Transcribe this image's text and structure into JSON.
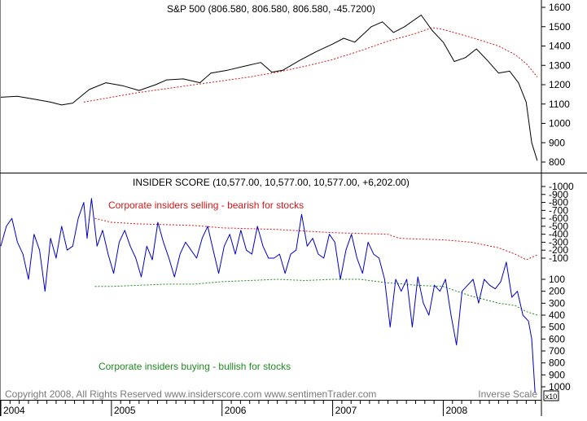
{
  "colors": {
    "background": "#ffffff",
    "axis": "#000000",
    "price_line": "#000000",
    "price_ma": "#d21919",
    "score_line": "#0000c8",
    "selling_band": "#d21919",
    "buying_band": "#1e8c1e"
  },
  "footer": {
    "copyright": "Copyright 2008, All Rights Reserved   www.insiderscore.com   www.sentimenTrader.com",
    "inverse_scale": "Inverse Scale",
    "multiplier": "x10"
  },
  "chart_data": [
    {
      "type": "line",
      "title": "S&P 500 (806.580, 806.580, 806.580, -45.7200)",
      "ylim": [
        760,
        1630
      ],
      "y_ticks": [
        800,
        900,
        1000,
        1100,
        1200,
        1300,
        1400,
        1500,
        1600
      ],
      "x_ticks": [
        "2004",
        "2005",
        "2006",
        "2007",
        "2008"
      ],
      "grid": false,
      "series": [
        {
          "style": "solid",
          "color": "#000000",
          "x": [
            2004.0,
            2004.15,
            2004.3,
            2004.45,
            2004.55,
            2004.65,
            2004.8,
            2004.95,
            2005.1,
            2005.25,
            2005.4,
            2005.5,
            2005.65,
            2005.8,
            2005.9,
            2006.05,
            2006.2,
            2006.35,
            2006.45,
            2006.55,
            2006.7,
            2006.85,
            2007.0,
            2007.1,
            2007.2,
            2007.35,
            2007.45,
            2007.55,
            2007.65,
            2007.8,
            2007.9,
            2008.0,
            2008.1,
            2008.2,
            2008.3,
            2008.4,
            2008.5,
            2008.6,
            2008.68,
            2008.75,
            2008.8,
            2008.85
          ],
          "values": [
            1135,
            1140,
            1125,
            1110,
            1095,
            1105,
            1175,
            1210,
            1195,
            1170,
            1200,
            1225,
            1230,
            1210,
            1260,
            1275,
            1295,
            1315,
            1265,
            1275,
            1325,
            1370,
            1410,
            1440,
            1420,
            1500,
            1525,
            1470,
            1500,
            1560,
            1480,
            1420,
            1320,
            1340,
            1385,
            1325,
            1260,
            1270,
            1210,
            1110,
            900,
            807
          ]
        },
        {
          "style": "dotted",
          "color": "#d21919",
          "x": [
            2004.75,
            2005.0,
            2005.25,
            2005.5,
            2005.75,
            2006.0,
            2006.25,
            2006.5,
            2006.75,
            2007.0,
            2007.25,
            2007.5,
            2007.75,
            2007.9,
            2008.0,
            2008.25,
            2008.5,
            2008.65,
            2008.75,
            2008.85
          ],
          "values": [
            1110,
            1135,
            1160,
            1180,
            1200,
            1220,
            1240,
            1265,
            1295,
            1330,
            1375,
            1425,
            1465,
            1495,
            1485,
            1445,
            1400,
            1355,
            1310,
            1240
          ]
        }
      ]
    },
    {
      "type": "line",
      "title": "INSIDER SCORE (10,577.00, 10,577.00, 10,577.00, +6,202.00)",
      "ylim": [
        -1100,
        1100
      ],
      "y_ticks": [
        -1000,
        -900,
        -800,
        -700,
        -600,
        -500,
        -400,
        -300,
        -200,
        -100,
        100,
        200,
        300,
        400,
        500,
        600,
        700,
        800,
        900,
        1000
      ],
      "y_axis_note": "Inverse Scale x10",
      "x_ticks": [
        "2004",
        "2005",
        "2006",
        "2007",
        "2008"
      ],
      "grid": false,
      "annotations": [
        {
          "text": "Corporate insiders selling - bearish for stocks",
          "color": "#d21919"
        },
        {
          "text": "Corporate insiders buying - bullish for stocks",
          "color": "#1e8c1e"
        }
      ],
      "series": [
        {
          "style": "solid",
          "color": "#0000c8",
          "x": [
            2004.0,
            2004.05,
            2004.1,
            2004.15,
            2004.2,
            2004.25,
            2004.3,
            2004.35,
            2004.4,
            2004.45,
            2004.5,
            2004.55,
            2004.6,
            2004.65,
            2004.7,
            2004.75,
            2004.78,
            2004.82,
            2004.87,
            2004.92,
            2004.97,
            2005.02,
            2005.07,
            2005.12,
            2005.17,
            2005.22,
            2005.27,
            2005.32,
            2005.37,
            2005.42,
            2005.47,
            2005.52,
            2005.57,
            2005.62,
            2005.67,
            2005.72,
            2005.77,
            2005.82,
            2005.87,
            2005.92,
            2005.97,
            2006.02,
            2006.07,
            2006.12,
            2006.17,
            2006.22,
            2006.27,
            2006.32,
            2006.37,
            2006.42,
            2006.47,
            2006.52,
            2006.57,
            2006.62,
            2006.67,
            2006.72,
            2006.77,
            2006.82,
            2006.87,
            2006.92,
            2006.97,
            2007.02,
            2007.07,
            2007.12,
            2007.17,
            2007.22,
            2007.27,
            2007.32,
            2007.37,
            2007.42,
            2007.47,
            2007.52,
            2007.57,
            2007.62,
            2007.67,
            2007.72,
            2007.77,
            2007.82,
            2007.87,
            2007.92,
            2007.97,
            2008.02,
            2008.07,
            2008.12,
            2008.17,
            2008.22,
            2008.27,
            2008.32,
            2008.37,
            2008.42,
            2008.47,
            2008.52,
            2008.57,
            2008.62,
            2008.67,
            2008.72,
            2008.77,
            2008.8,
            2008.83
          ],
          "values": [
            -250,
            -500,
            -600,
            -300,
            -150,
            100,
            -400,
            -200,
            200,
            -350,
            -100,
            -500,
            -200,
            -250,
            -600,
            -800,
            -350,
            -850,
            -250,
            -450,
            -150,
            50,
            -300,
            -450,
            -250,
            -100,
            80,
            -250,
            -80,
            -550,
            -300,
            -100,
            80,
            -150,
            -300,
            -200,
            -100,
            -350,
            -500,
            -200,
            50,
            -250,
            -400,
            -150,
            -450,
            -200,
            -150,
            -500,
            -250,
            -100,
            -100,
            -150,
            50,
            -150,
            -200,
            -650,
            -250,
            -350,
            -150,
            -100,
            -400,
            -300,
            100,
            -200,
            -400,
            -100,
            50,
            -300,
            -150,
            -100,
            100,
            500,
            100,
            200,
            100,
            500,
            80,
            300,
            400,
            150,
            200,
            100,
            400,
            650,
            200,
            150,
            100,
            300,
            100,
            150,
            180,
            120,
            -50,
            250,
            200,
            400,
            450,
            600,
            1050
          ]
        },
        {
          "style": "dotted",
          "color": "#d21919",
          "x": [
            2004.85,
            2005.0,
            2005.25,
            2005.5,
            2005.75,
            2006.0,
            2006.25,
            2006.5,
            2006.75,
            2007.0,
            2007.25,
            2007.5,
            2007.6,
            2007.75,
            2008.0,
            2008.25,
            2008.5,
            2008.65,
            2008.75,
            2008.85
          ],
          "values": [
            -600,
            -550,
            -530,
            -520,
            -510,
            -480,
            -470,
            -460,
            -440,
            -420,
            -410,
            -400,
            -350,
            -340,
            -330,
            -300,
            -230,
            -150,
            -80,
            -140
          ]
        },
        {
          "style": "dotted",
          "color": "#1e8c1e",
          "x": [
            2004.85,
            2005.0,
            2005.25,
            2005.5,
            2005.75,
            2006.0,
            2006.25,
            2006.5,
            2006.75,
            2007.0,
            2007.25,
            2007.5,
            2007.65,
            2007.75,
            2008.0,
            2008.25,
            2008.5,
            2008.65,
            2008.75,
            2008.85
          ],
          "values": [
            160,
            160,
            150,
            140,
            140,
            120,
            110,
            100,
            110,
            100,
            100,
            130,
            140,
            150,
            160,
            240,
            300,
            320,
            370,
            400
          ]
        }
      ]
    }
  ]
}
